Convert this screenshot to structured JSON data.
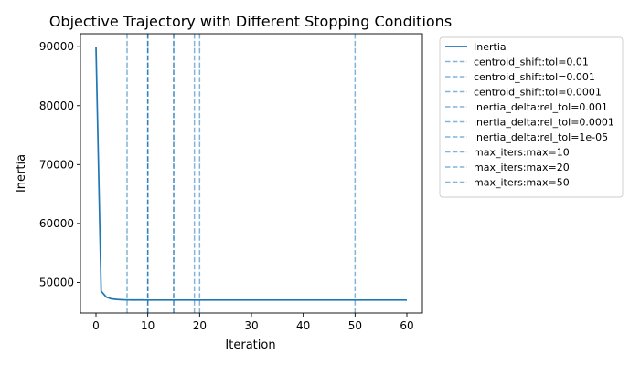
{
  "chart_data": {
    "type": "line",
    "title": "Objective Trajectory with Different Stopping Conditions",
    "xlabel": "Iteration",
    "ylabel": "Inertia",
    "xlim": [
      -3,
      63
    ],
    "ylim": [
      44800,
      92200
    ],
    "xticks": [
      0,
      10,
      20,
      30,
      40,
      50,
      60
    ],
    "yticks": [
      50000,
      60000,
      70000,
      80000,
      90000
    ],
    "grid": false,
    "legend_position": "outside-top-right",
    "series": [
      {
        "name": "Inertia",
        "color": "#1f77b4",
        "x": [
          0,
          1,
          2,
          3,
          4,
          5,
          6,
          7,
          8,
          9,
          10,
          11,
          12,
          13,
          14,
          15,
          16,
          17,
          18,
          19,
          20,
          21,
          22,
          23,
          24,
          25,
          26,
          27,
          28,
          29,
          30,
          31,
          32,
          33,
          34,
          35,
          36,
          37,
          38,
          39,
          40,
          41,
          42,
          43,
          44,
          45,
          46,
          47,
          48,
          49,
          50,
          51,
          52,
          53,
          54,
          55,
          56,
          57,
          58,
          59,
          60
        ],
        "y": [
          90000,
          48500,
          47500,
          47200,
          47100,
          47050,
          47020,
          47010,
          47005,
          47002,
          47001,
          47000,
          47000,
          47000,
          47000,
          47000,
          47000,
          47000,
          47000,
          47000,
          47000,
          47000,
          47000,
          47000,
          47000,
          47000,
          47000,
          47000,
          47000,
          47000,
          47000,
          47000,
          47000,
          47000,
          47000,
          47000,
          47000,
          47000,
          47000,
          47000,
          47000,
          47000,
          47000,
          47000,
          47000,
          47000,
          47000,
          47000,
          47000,
          47000,
          47000,
          47000,
          47000,
          47000,
          47000,
          47000,
          47000,
          47000,
          47000,
          47000,
          47000
        ]
      }
    ],
    "vlines": [
      {
        "name": "centroid_shift:tol=0.01",
        "x": 6
      },
      {
        "name": "centroid_shift:tol=0.001",
        "x": 10
      },
      {
        "name": "centroid_shift:tol=0.0001",
        "x": 15
      },
      {
        "name": "inertia_delta:rel_tol=0.001",
        "x": 10
      },
      {
        "name": "inertia_delta:rel_tol=0.0001",
        "x": 15
      },
      {
        "name": "inertia_delta:rel_tol=1e-05",
        "x": 19
      },
      {
        "name": "max_iters:max=10",
        "x": 10
      },
      {
        "name": "max_iters:max=20",
        "x": 20
      },
      {
        "name": "max_iters:max=50",
        "x": 50
      }
    ],
    "vline_color": "#1f77b4"
  }
}
